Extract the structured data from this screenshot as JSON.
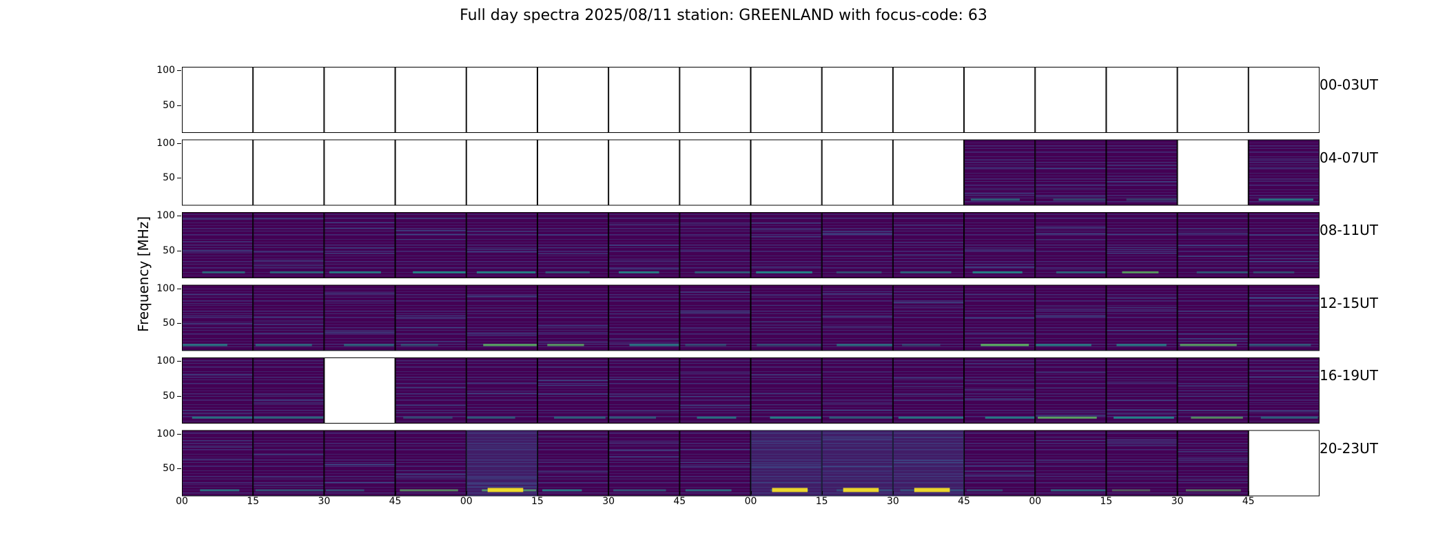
{
  "chart_data": {
    "type": "heatmap",
    "title": "Full day spectra 2025/08/11 station: GREENLAND with focus-code: 63",
    "ylabel": "Frequency [MHz]",
    "ylim": [
      10,
      105
    ],
    "yticks": [
      "100",
      "50"
    ],
    "xticks": [
      "00",
      "15",
      "30",
      "45",
      "00",
      "15",
      "30",
      "45",
      "00",
      "15",
      "30",
      "45",
      "00",
      "15",
      "30",
      "45"
    ],
    "colormap": [
      "#440154",
      "#3b528b",
      "#21918c",
      "#5ec962",
      "#fde725"
    ],
    "rows": [
      {
        "label": "00-03UT",
        "has_data": [
          0,
          0,
          0,
          0,
          0,
          0,
          0,
          0,
          0,
          0,
          0,
          0,
          0,
          0,
          0,
          0
        ]
      },
      {
        "label": "04-07UT",
        "has_data": [
          0,
          0,
          0,
          0,
          0,
          0,
          0,
          0,
          0,
          0,
          0,
          1,
          1,
          1,
          0,
          1
        ]
      },
      {
        "label": "08-11UT",
        "has_data": [
          1,
          1,
          1,
          1,
          1,
          1,
          1,
          1,
          1,
          1,
          1,
          1,
          1,
          1,
          1,
          1
        ]
      },
      {
        "label": "12-15UT",
        "has_data": [
          1,
          1,
          1,
          1,
          1,
          1,
          1,
          1,
          1,
          1,
          1,
          1,
          1,
          1,
          1,
          1
        ]
      },
      {
        "label": "16-19UT",
        "has_data": [
          1,
          1,
          0,
          1,
          1,
          1,
          1,
          1,
          1,
          1,
          1,
          1,
          1,
          1,
          1,
          1
        ]
      },
      {
        "label": "20-23UT",
        "has_data": [
          1,
          1,
          1,
          1,
          1,
          1,
          1,
          1,
          1,
          1,
          1,
          1,
          1,
          1,
          1,
          0
        ]
      }
    ],
    "grid": false,
    "legend": "none"
  }
}
